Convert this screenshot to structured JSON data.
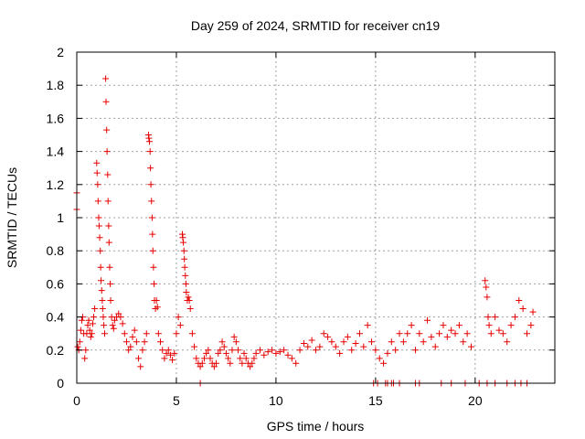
{
  "chart_data": {
    "type": "scatter",
    "title": "Day 259 of 2024, SRMTID for receiver cn19",
    "xlabel": "GPS time / hours",
    "ylabel": "SRMTID / TECUs",
    "xlim": [
      0,
      24
    ],
    "ylim": [
      0,
      2
    ],
    "grid": true,
    "marker": "+",
    "xticks": [
      {
        "value": 0,
        "label": "0"
      },
      {
        "value": 5,
        "label": "5"
      },
      {
        "value": 10,
        "label": "10"
      },
      {
        "value": 15,
        "label": "15"
      },
      {
        "value": 20,
        "label": "20"
      }
    ],
    "yticks": [
      {
        "value": 0,
        "label": "0"
      },
      {
        "value": 0.2,
        "label": "0.2"
      },
      {
        "value": 0.4,
        "label": "0.4"
      },
      {
        "value": 0.6,
        "label": "0.6"
      },
      {
        "value": 0.8,
        "label": "0.8"
      },
      {
        "value": 1,
        "label": "1"
      },
      {
        "value": 1.2,
        "label": "1.2"
      },
      {
        "value": 1.4,
        "label": "1.4"
      },
      {
        "value": 1.6,
        "label": "1.6"
      },
      {
        "value": 1.8,
        "label": "1.8"
      },
      {
        "value": 2,
        "label": "2"
      }
    ],
    "series": [
      {
        "name": "SRMTID",
        "color": "#e60000",
        "points": [
          [
            0.0,
            1.15
          ],
          [
            0.0,
            1.05
          ],
          [
            0.05,
            0.22
          ],
          [
            0.1,
            0.2
          ],
          [
            0.15,
            0.25
          ],
          [
            0.2,
            0.32
          ],
          [
            0.25,
            0.38
          ],
          [
            0.3,
            0.4
          ],
          [
            0.35,
            0.3
          ],
          [
            0.4,
            0.15
          ],
          [
            0.45,
            0.2
          ],
          [
            0.5,
            0.3
          ],
          [
            0.55,
            0.35
          ],
          [
            0.6,
            0.38
          ],
          [
            0.65,
            0.32
          ],
          [
            0.7,
            0.28
          ],
          [
            0.75,
            0.3
          ],
          [
            0.8,
            0.36
          ],
          [
            0.85,
            0.4
          ],
          [
            0.9,
            0.45
          ],
          [
            1.0,
            1.33
          ],
          [
            1.02,
            1.27
          ],
          [
            1.05,
            1.2
          ],
          [
            1.07,
            1.1
          ],
          [
            1.1,
            1.0
          ],
          [
            1.12,
            0.95
          ],
          [
            1.15,
            0.88
          ],
          [
            1.18,
            0.8
          ],
          [
            1.2,
            0.7
          ],
          [
            1.22,
            0.62
          ],
          [
            1.25,
            0.56
          ],
          [
            1.28,
            0.5
          ],
          [
            1.3,
            0.45
          ],
          [
            1.33,
            0.4
          ],
          [
            1.36,
            0.35
          ],
          [
            1.4,
            0.3
          ],
          [
            1.45,
            1.84
          ],
          [
            1.47,
            1.7
          ],
          [
            1.5,
            1.53
          ],
          [
            1.52,
            1.4
          ],
          [
            1.55,
            1.26
          ],
          [
            1.57,
            1.1
          ],
          [
            1.6,
            0.95
          ],
          [
            1.62,
            0.85
          ],
          [
            1.65,
            0.7
          ],
          [
            1.68,
            0.6
          ],
          [
            1.7,
            0.5
          ],
          [
            1.75,
            0.4
          ],
          [
            1.8,
            0.35
          ],
          [
            1.85,
            0.33
          ],
          [
            1.9,
            0.38
          ],
          [
            2.0,
            0.4
          ],
          [
            2.1,
            0.42
          ],
          [
            2.2,
            0.4
          ],
          [
            2.3,
            0.36
          ],
          [
            2.4,
            0.3
          ],
          [
            2.5,
            0.25
          ],
          [
            2.6,
            0.2
          ],
          [
            2.7,
            0.22
          ],
          [
            2.8,
            0.28
          ],
          [
            2.9,
            0.32
          ],
          [
            3.0,
            0.25
          ],
          [
            3.1,
            0.15
          ],
          [
            3.2,
            0.1
          ],
          [
            3.3,
            0.2
          ],
          [
            3.4,
            0.25
          ],
          [
            3.5,
            0.3
          ],
          [
            3.6,
            1.5
          ],
          [
            3.62,
            1.48
          ],
          [
            3.65,
            1.46
          ],
          [
            3.68,
            1.4
          ],
          [
            3.7,
            1.3
          ],
          [
            3.72,
            1.2
          ],
          [
            3.75,
            1.1
          ],
          [
            3.78,
            1.0
          ],
          [
            3.8,
            0.9
          ],
          [
            3.82,
            0.8
          ],
          [
            3.85,
            0.7
          ],
          [
            3.88,
            0.6
          ],
          [
            3.9,
            0.5
          ],
          [
            3.95,
            0.45
          ],
          [
            4.0,
            0.5
          ],
          [
            4.05,
            0.46
          ],
          [
            4.1,
            0.3
          ],
          [
            4.2,
            0.25
          ],
          [
            4.3,
            0.2
          ],
          [
            4.4,
            0.15
          ],
          [
            4.5,
            0.18
          ],
          [
            4.6,
            0.2
          ],
          [
            4.7,
            0.17
          ],
          [
            4.8,
            0.14
          ],
          [
            4.9,
            0.18
          ],
          [
            5.0,
            0.3
          ],
          [
            5.1,
            0.4
          ],
          [
            5.2,
            0.35
          ],
          [
            5.3,
            0.9
          ],
          [
            5.32,
            0.88
          ],
          [
            5.35,
            0.85
          ],
          [
            5.38,
            0.8
          ],
          [
            5.4,
            0.75
          ],
          [
            5.42,
            0.7
          ],
          [
            5.45,
            0.65
          ],
          [
            5.48,
            0.6
          ],
          [
            5.5,
            0.55
          ],
          [
            5.55,
            0.5
          ],
          [
            5.6,
            0.52
          ],
          [
            5.65,
            0.5
          ],
          [
            5.7,
            0.45
          ],
          [
            5.8,
            0.3
          ],
          [
            5.9,
            0.22
          ],
          [
            6.0,
            0.15
          ],
          [
            6.1,
            0.12
          ],
          [
            6.2,
            0.1
          ],
          [
            6.3,
            0.12
          ],
          [
            6.4,
            0.15
          ],
          [
            6.5,
            0.18
          ],
          [
            6.6,
            0.2
          ],
          [
            6.7,
            0.15
          ],
          [
            6.8,
            0.12
          ],
          [
            6.9,
            0.1
          ],
          [
            7.0,
            0.12
          ],
          [
            7.1,
            0.18
          ],
          [
            7.2,
            0.2
          ],
          [
            7.3,
            0.25
          ],
          [
            7.4,
            0.22
          ],
          [
            7.5,
            0.18
          ],
          [
            7.6,
            0.15
          ],
          [
            7.7,
            0.12
          ],
          [
            7.8,
            0.2
          ],
          [
            7.9,
            0.28
          ],
          [
            8.0,
            0.25
          ],
          [
            8.1,
            0.2
          ],
          [
            8.2,
            0.15
          ],
          [
            8.3,
            0.12
          ],
          [
            8.4,
            0.18
          ],
          [
            8.5,
            0.15
          ],
          [
            8.6,
            0.12
          ],
          [
            8.7,
            0.1
          ],
          [
            8.8,
            0.12
          ],
          [
            8.9,
            0.15
          ],
          [
            9.0,
            0.18
          ],
          [
            9.2,
            0.2
          ],
          [
            9.4,
            0.17
          ],
          [
            9.6,
            0.19
          ],
          [
            9.8,
            0.2
          ],
          [
            10.0,
            0.18
          ],
          [
            10.2,
            0.19
          ],
          [
            10.4,
            0.2
          ],
          [
            10.6,
            0.17
          ],
          [
            10.8,
            0.15
          ],
          [
            11.0,
            0.12
          ],
          [
            11.2,
            0.2
          ],
          [
            11.4,
            0.24
          ],
          [
            11.6,
            0.22
          ],
          [
            11.8,
            0.26
          ],
          [
            12.0,
            0.2
          ],
          [
            12.2,
            0.22
          ],
          [
            12.4,
            0.3
          ],
          [
            12.6,
            0.28
          ],
          [
            12.8,
            0.25
          ],
          [
            13.0,
            0.22
          ],
          [
            13.2,
            0.18
          ],
          [
            13.4,
            0.25
          ],
          [
            13.6,
            0.28
          ],
          [
            13.8,
            0.2
          ],
          [
            14.0,
            0.24
          ],
          [
            14.2,
            0.3
          ],
          [
            14.4,
            0.22
          ],
          [
            14.6,
            0.35
          ],
          [
            14.8,
            0.25
          ],
          [
            15.0,
            0.2
          ],
          [
            15.2,
            0.15
          ],
          [
            15.4,
            0.12
          ],
          [
            15.6,
            0.18
          ],
          [
            15.8,
            0.25
          ],
          [
            16.0,
            0.2
          ],
          [
            16.2,
            0.3
          ],
          [
            16.4,
            0.25
          ],
          [
            16.6,
            0.3
          ],
          [
            16.8,
            0.35
          ],
          [
            17.0,
            0.2
          ],
          [
            17.2,
            0.3
          ],
          [
            17.4,
            0.25
          ],
          [
            17.6,
            0.38
          ],
          [
            17.8,
            0.28
          ],
          [
            18.0,
            0.22
          ],
          [
            18.2,
            0.3
          ],
          [
            18.4,
            0.35
          ],
          [
            18.6,
            0.28
          ],
          [
            18.8,
            0.32
          ],
          [
            19.0,
            0.3
          ],
          [
            19.2,
            0.35
          ],
          [
            19.4,
            0.25
          ],
          [
            19.6,
            0.3
          ],
          [
            19.8,
            0.22
          ],
          [
            20.5,
            0.62
          ],
          [
            20.55,
            0.58
          ],
          [
            20.6,
            0.52
          ],
          [
            20.65,
            0.4
          ],
          [
            20.7,
            0.35
          ],
          [
            20.8,
            0.3
          ],
          [
            21.0,
            0.4
          ],
          [
            21.2,
            0.32
          ],
          [
            21.4,
            0.3
          ],
          [
            21.6,
            0.25
          ],
          [
            21.8,
            0.35
          ],
          [
            22.0,
            0.4
          ],
          [
            22.2,
            0.5
          ],
          [
            22.4,
            0.45
          ],
          [
            22.6,
            0.3
          ],
          [
            22.8,
            0.35
          ],
          [
            22.9,
            0.43
          ],
          [
            6.2,
            0.0
          ],
          [
            14.9,
            0.0
          ],
          [
            15.1,
            0.0
          ],
          [
            15.5,
            0.0
          ],
          [
            15.6,
            0.0
          ],
          [
            15.8,
            0.0
          ],
          [
            15.9,
            0.0
          ],
          [
            16.2,
            0.0
          ],
          [
            17.0,
            0.0
          ],
          [
            17.2,
            0.0
          ],
          [
            18.3,
            0.0
          ],
          [
            18.8,
            0.0
          ],
          [
            19.5,
            0.0
          ],
          [
            20.2,
            0.0
          ],
          [
            20.6,
            0.0
          ],
          [
            21.0,
            0.0
          ],
          [
            21.6,
            0.0
          ],
          [
            22.0,
            0.0
          ],
          [
            22.3,
            0.0
          ],
          [
            22.6,
            0.0
          ]
        ]
      }
    ]
  }
}
